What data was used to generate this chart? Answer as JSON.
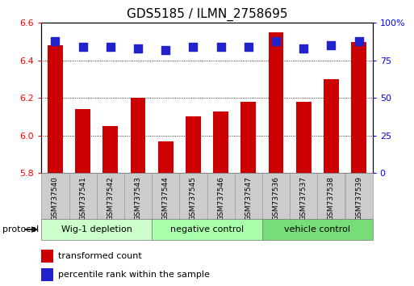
{
  "title": "GDS5185 / ILMN_2758695",
  "samples": [
    "GSM737540",
    "GSM737541",
    "GSM737542",
    "GSM737543",
    "GSM737544",
    "GSM737545",
    "GSM737546",
    "GSM737547",
    "GSM737536",
    "GSM737537",
    "GSM737538",
    "GSM737539"
  ],
  "transformed_counts": [
    6.48,
    6.14,
    6.05,
    6.2,
    5.97,
    6.1,
    6.13,
    6.18,
    6.55,
    6.18,
    6.3,
    6.5
  ],
  "percentile_ranks": [
    88,
    84,
    84,
    83,
    82,
    84,
    84,
    84,
    88,
    83,
    85,
    88
  ],
  "groups": [
    {
      "label": "Wig-1 depletion",
      "start": 0,
      "end": 4
    },
    {
      "label": "negative control",
      "start": 4,
      "end": 8
    },
    {
      "label": "vehicle control",
      "start": 8,
      "end": 12
    }
  ],
  "group_colors": [
    "#ccffcc",
    "#aaffaa",
    "#77dd77"
  ],
  "ylim_left": [
    5.8,
    6.6
  ],
  "ylim_right": [
    0,
    100
  ],
  "yticks_left": [
    5.8,
    6.0,
    6.2,
    6.4,
    6.6
  ],
  "yticks_right": [
    0,
    25,
    50,
    75,
    100
  ],
  "bar_color": "#cc0000",
  "dot_color": "#2222cc",
  "bar_bottom": 5.8,
  "bar_width": 0.55,
  "dot_size": 55,
  "sample_box_color": "#cccccc",
  "sample_box_edge": "#999999"
}
